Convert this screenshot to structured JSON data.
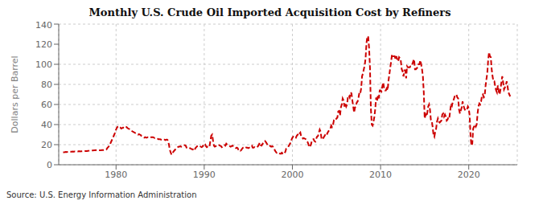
{
  "chart_data": {
    "type": "line",
    "title": "Monthly U.S. Crude Oil Imported Acquisition Cost by Refiners",
    "ylabel": "Dollars per Barrel",
    "annotations": [
      "Source: U.S. Energy Information Administration"
    ],
    "color": "#CC0000",
    "line_style": "dashed",
    "grid": true,
    "xlim": [
      1973.5,
      2025.5
    ],
    "xticks": [
      1980,
      1990,
      2000,
      2010,
      2020
    ],
    "ylim": [
      0,
      140
    ],
    "yticks": [
      0,
      20,
      40,
      60,
      80,
      100,
      120,
      140
    ],
    "x": [
      1974.0,
      1974.1,
      1974.2,
      1974.3,
      1974.4,
      1974.5,
      1974.6,
      1974.7,
      1974.8,
      1974.9,
      1975.0,
      1975.1,
      1975.2,
      1975.3,
      1975.4,
      1975.5,
      1975.6,
      1975.7,
      1975.8,
      1975.9,
      1976.0,
      1976.1,
      1976.2,
      1976.3,
      1976.4,
      1976.5,
      1976.6,
      1976.7,
      1976.8,
      1976.9,
      1977.0,
      1977.1,
      1977.2,
      1977.3,
      1977.4,
      1977.5,
      1977.6,
      1977.7,
      1977.8,
      1977.9,
      1978.0,
      1978.1,
      1978.2,
      1978.3,
      1978.4,
      1978.5,
      1978.6,
      1978.7,
      1978.8,
      1978.9,
      1979.0,
      1979.1,
      1979.2,
      1979.3,
      1979.4,
      1979.5,
      1979.6,
      1979.7,
      1979.8,
      1979.9,
      1980.0,
      1980.1,
      1980.2,
      1980.3,
      1980.4,
      1980.5,
      1980.6,
      1980.7,
      1980.8,
      1980.9,
      1981.0,
      1981.1,
      1981.2,
      1981.3,
      1981.4,
      1981.5,
      1981.6,
      1981.7,
      1981.8,
      1981.9,
      1982.0,
      1982.1,
      1982.2,
      1982.3,
      1982.4,
      1982.5,
      1982.6,
      1982.7,
      1982.8,
      1982.9,
      1983.0,
      1983.1,
      1983.2,
      1983.3,
      1983.4,
      1983.5,
      1983.6,
      1983.7,
      1983.8,
      1983.9,
      1984.0,
      1984.1,
      1984.2,
      1984.3,
      1984.4,
      1984.5,
      1984.6,
      1984.7,
      1984.8,
      1984.9,
      1985.0,
      1985.1,
      1985.2,
      1985.3,
      1985.4,
      1985.5,
      1985.6,
      1985.7,
      1985.8,
      1985.9,
      1986.0,
      1986.1,
      1986.2,
      1986.3,
      1986.4,
      1986.5,
      1986.6,
      1986.7,
      1986.8,
      1986.9,
      1987.0,
      1987.1,
      1987.2,
      1987.3,
      1987.4,
      1987.5,
      1987.6,
      1987.7,
      1987.8,
      1987.9,
      1988.0,
      1988.1,
      1988.2,
      1988.3,
      1988.4,
      1988.5,
      1988.6,
      1988.7,
      1988.8,
      1988.9,
      1989.0,
      1989.1,
      1989.2,
      1989.3,
      1989.4,
      1989.5,
      1989.6,
      1989.7,
      1989.8,
      1989.9,
      1990.0,
      1990.1,
      1990.2,
      1990.3,
      1990.4,
      1990.5,
      1990.6,
      1990.7,
      1990.8,
      1990.9,
      1991.0,
      1991.1,
      1991.2,
      1991.3,
      1991.4,
      1991.5,
      1991.6,
      1991.7,
      1991.8,
      1991.9,
      1992.0,
      1992.1,
      1992.2,
      1992.3,
      1992.4,
      1992.5,
      1992.6,
      1992.7,
      1992.8,
      1992.9,
      1993.0,
      1993.1,
      1993.2,
      1993.3,
      1993.4,
      1993.5,
      1993.6,
      1993.7,
      1993.8,
      1993.9,
      1994.0,
      1994.1,
      1994.2,
      1994.3,
      1994.4,
      1994.5,
      1994.6,
      1994.7,
      1994.8,
      1994.9,
      1995.0,
      1995.1,
      1995.2,
      1995.3,
      1995.4,
      1995.5,
      1995.6,
      1995.7,
      1995.8,
      1995.9,
      1996.0,
      1996.1,
      1996.2,
      1996.3,
      1996.4,
      1996.5,
      1996.6,
      1996.7,
      1996.8,
      1996.9,
      1997.0,
      1997.1,
      1997.2,
      1997.3,
      1997.4,
      1997.5,
      1997.6,
      1997.7,
      1997.8,
      1997.9,
      1998.0,
      1998.1,
      1998.2,
      1998.3,
      1998.4,
      1998.5,
      1998.6,
      1998.7,
      1998.8,
      1998.9,
      1999.0,
      1999.1,
      1999.2,
      1999.3,
      1999.4,
      1999.5,
      1999.6,
      1999.7,
      1999.8,
      1999.9,
      2000.0,
      2000.1,
      2000.2,
      2000.3,
      2000.4,
      2000.5,
      2000.6,
      2000.7,
      2000.8,
      2000.9,
      2001.0,
      2001.1,
      2001.2,
      2001.3,
      2001.4,
      2001.5,
      2001.6,
      2001.7,
      2001.8,
      2001.9,
      2002.0,
      2002.1,
      2002.2,
      2002.3,
      2002.4,
      2002.5,
      2002.6,
      2002.7,
      2002.8,
      2002.9,
      2003.0,
      2003.1,
      2003.2,
      2003.3,
      2003.4,
      2003.5,
      2003.6,
      2003.7,
      2003.8,
      2003.9,
      2004.0,
      2004.1,
      2004.2,
      2004.3,
      2004.4,
      2004.5,
      2004.6,
      2004.7,
      2004.8,
      2004.9,
      2005.0,
      2005.1,
      2005.2,
      2005.3,
      2005.4,
      2005.5,
      2005.6,
      2005.7,
      2005.8,
      2005.9,
      2006.0,
      2006.1,
      2006.2,
      2006.3,
      2006.4,
      2006.5,
      2006.6,
      2006.7,
      2006.8,
      2006.9,
      2007.0,
      2007.1,
      2007.2,
      2007.3,
      2007.4,
      2007.5,
      2007.6,
      2007.7,
      2007.8,
      2007.9,
      2008.0,
      2008.1,
      2008.2,
      2008.3,
      2008.4,
      2008.5,
      2008.6,
      2008.7,
      2008.8,
      2008.9,
      2009.0,
      2009.1,
      2009.2,
      2009.3,
      2009.4,
      2009.5,
      2009.6,
      2009.7,
      2009.8,
      2009.9,
      2010.0,
      2010.1,
      2010.2,
      2010.3,
      2010.4,
      2010.5,
      2010.6,
      2010.7,
      2010.8,
      2010.9,
      2011.0,
      2011.1,
      2011.2,
      2011.3,
      2011.4,
      2011.5,
      2011.6,
      2011.7,
      2011.8,
      2011.9,
      2012.0,
      2012.1,
      2012.2,
      2012.3,
      2012.4,
      2012.5,
      2012.6,
      2012.7,
      2012.8,
      2012.9,
      2013.0,
      2013.1,
      2013.2,
      2013.3,
      2013.4,
      2013.5,
      2013.6,
      2013.7,
      2013.8,
      2013.9,
      2014.0,
      2014.1,
      2014.2,
      2014.3,
      2014.4,
      2014.5,
      2014.6,
      2014.7,
      2014.8,
      2014.9,
      2015.0,
      2015.1,
      2015.2,
      2015.3,
      2015.4,
      2015.5,
      2015.6,
      2015.7,
      2015.8,
      2015.9,
      2016.0,
      2016.1,
      2016.2,
      2016.3,
      2016.4,
      2016.5,
      2016.6,
      2016.7,
      2016.8,
      2016.9,
      2017.0,
      2017.1,
      2017.2,
      2017.3,
      2017.4,
      2017.5,
      2017.6,
      2017.7,
      2017.8,
      2017.9,
      2018.0,
      2018.1,
      2018.2,
      2018.3,
      2018.4,
      2018.5,
      2018.6,
      2018.7,
      2018.8,
      2018.9,
      2019.0,
      2019.1,
      2019.2,
      2019.3,
      2019.4,
      2019.5,
      2019.6,
      2019.7,
      2019.8,
      2019.9,
      2020.0,
      2020.1,
      2020.2,
      2020.3,
      2020.4,
      2020.5,
      2020.6,
      2020.7,
      2020.8,
      2020.9,
      2021.0,
      2021.1,
      2021.2,
      2021.3,
      2021.4,
      2021.5,
      2021.6,
      2021.7,
      2021.8,
      2021.9,
      2022.0,
      2022.1,
      2022.2,
      2022.3,
      2022.4,
      2022.5,
      2022.6,
      2022.7,
      2022.8,
      2022.9,
      2023.0,
      2023.1,
      2023.2,
      2023.3,
      2023.4,
      2023.5,
      2023.6,
      2023.7,
      2023.8,
      2023.9,
      2024.0,
      2024.1,
      2024.2,
      2024.3,
      2024.4,
      2024.5,
      2024.6,
      2024.7
    ],
    "values": [
      12.5,
      12.5,
      12.6,
      12.8,
      12.7,
      12.8,
      12.9,
      13.0,
      13.1,
      13.0,
      13.0,
      13.1,
      13.0,
      13.2,
      13.1,
      13.3,
      13.2,
      13.2,
      13.5,
      13.3,
      13.4,
      13.4,
      13.5,
      13.4,
      13.5,
      13.6,
      13.7,
      13.7,
      13.8,
      13.9,
      14.0,
      14.1,
      14.2,
      14.3,
      14.3,
      14.4,
      14.4,
      14.5,
      14.4,
      14.5,
      14.6,
      14.5,
      14.5,
      14.5,
      14.6,
      14.6,
      14.7,
      14.7,
      14.7,
      15.0,
      16.5,
      17.5,
      18.5,
      20.0,
      22.0,
      24.0,
      26.0,
      28.0,
      30.0,
      32.0,
      35.0,
      37.0,
      38.0,
      38.5,
      37.5,
      37.0,
      36.0,
      36.5,
      37.0,
      36.5,
      37.5,
      37.8,
      37.5,
      36.5,
      36.0,
      35.5,
      34.5,
      34.0,
      33.5,
      33.0,
      32.5,
      32.0,
      31.5,
      31.0,
      30.5,
      30.0,
      30.5,
      30.0,
      29.5,
      28.5,
      28.0,
      27.5,
      27.0,
      27.5,
      27.0,
      27.0,
      27.5,
      27.5,
      27.0,
      27.0,
      27.5,
      27.5,
      27.5,
      27.0,
      26.5,
      26.5,
      26.5,
      26.0,
      25.5,
      25.5,
      25.5,
      25.0,
      25.0,
      25.5,
      25.0,
      25.0,
      24.5,
      25.0,
      25.0,
      24.0,
      20.0,
      15.0,
      12.0,
      10.0,
      11.0,
      13.0,
      14.0,
      15.0,
      16.0,
      17.0,
      17.5,
      18.0,
      18.0,
      18.5,
      18.0,
      18.5,
      19.0,
      19.5,
      19.5,
      19.0,
      17.0,
      16.5,
      16.0,
      16.0,
      16.5,
      16.0,
      15.5,
      15.5,
      14.0,
      14.5,
      16.5,
      17.5,
      18.5,
      18.5,
      18.0,
      18.5,
      18.0,
      17.5,
      18.0,
      19.5,
      21.0,
      20.5,
      18.5,
      17.5,
      18.0,
      17.5,
      18.0,
      24.0,
      29.0,
      30.0,
      24.0,
      19.0,
      18.0,
      18.5,
      19.0,
      18.5,
      19.0,
      19.5,
      19.0,
      18.5,
      17.5,
      18.0,
      18.5,
      19.5,
      19.0,
      21.0,
      20.0,
      19.5,
      19.0,
      18.5,
      18.0,
      18.5,
      19.0,
      18.5,
      18.0,
      17.0,
      16.5,
      17.0,
      16.5,
      14.0,
      14.5,
      14.0,
      14.5,
      16.0,
      17.0,
      17.5,
      18.0,
      17.5,
      17.0,
      17.0,
      16.5,
      17.0,
      17.5,
      18.5,
      19.0,
      17.0,
      17.0,
      17.5,
      17.0,
      17.5,
      17.5,
      18.5,
      20.0,
      22.0,
      19.5,
      19.0,
      20.5,
      21.5,
      22.0,
      23.5,
      22.5,
      21.0,
      19.5,
      19.0,
      19.5,
      18.5,
      18.0,
      18.5,
      18.0,
      17.0,
      14.5,
      13.0,
      12.0,
      12.5,
      12.0,
      11.5,
      11.0,
      11.0,
      12.0,
      11.0,
      10.5,
      11.5,
      13.0,
      16.0,
      16.5,
      17.5,
      19.0,
      20.5,
      22.0,
      25.0,
      27.0,
      28.0,
      27.5,
      28.0,
      27.0,
      29.0,
      30.0,
      29.0,
      31.0,
      32.0,
      28.0,
      27.5,
      26.0,
      26.5,
      26.0,
      25.5,
      24.5,
      23.0,
      21.0,
      17.5,
      18.5,
      20.0,
      23.5,
      25.0,
      25.5,
      23.5,
      23.0,
      26.0,
      28.0,
      28.5,
      32.0,
      35.0,
      33.0,
      26.0,
      25.0,
      26.5,
      28.0,
      29.5,
      28.5,
      30.0,
      32.0,
      33.5,
      34.5,
      36.0,
      39.0,
      37.5,
      39.5,
      44.0,
      43.5,
      45.0,
      46.0,
      47.0,
      53.0,
      53.5,
      49.0,
      57.0,
      60.0,
      66.0,
      64.0,
      58.0,
      61.0,
      58.0,
      60.0,
      68.0,
      69.0,
      67.0,
      72.0,
      71.0,
      64.0,
      58.0,
      52.0,
      57.0,
      58.0,
      62.0,
      63.0,
      67.0,
      72.0,
      71.0,
      76.0,
      88.0,
      91.0,
      95.0,
      99.0,
      106.0,
      121.0,
      128.0,
      127.0,
      116.0,
      96.0,
      56.0,
      40.0,
      39.0,
      43.0,
      48.0,
      56.0,
      67.0,
      63.0,
      69.0,
      66.0,
      74.0,
      74.0,
      73.0,
      78.0,
      82.0,
      76.0,
      74.0,
      74.0,
      76.0,
      74.0,
      84.0,
      90.0,
      97.0,
      103.0,
      110.0,
      108.0,
      108.0,
      108.0,
      105.0,
      108.0,
      104.0,
      103.0,
      107.0,
      106.0,
      103.0,
      95.0,
      93.0,
      88.0,
      94.0,
      94.0,
      86.0,
      98.0,
      97.0,
      97.0,
      97.0,
      98.0,
      98.0,
      100.0,
      103.0,
      105.0,
      95.0,
      95.0,
      96.0,
      97.0,
      100.0,
      100.0,
      104.0,
      100.0,
      95.0,
      88.0,
      72.0,
      46.0,
      50.0,
      48.0,
      52.0,
      58.0,
      60.0,
      55.0,
      45.0,
      44.0,
      38.0,
      30.0,
      28.0,
      33.0,
      36.0,
      43.0,
      46.0,
      43.0,
      42.0,
      43.0,
      44.0,
      50.0,
      51.0,
      48.0,
      50.0,
      48.0,
      44.0,
      45.0,
      48.0,
      47.0,
      54.0,
      61.0,
      59.0,
      63.0,
      65.0,
      68.0,
      69.0,
      70.0,
      67.0,
      66.0,
      55.0,
      51.0,
      54.0,
      57.0,
      63.0,
      59.0,
      56.0,
      54.0,
      55.0,
      55.0,
      58.0,
      56.0,
      49.0,
      29.0,
      19.0,
      21.0,
      36.0,
      38.0,
      40.0,
      38.0,
      40.0,
      51.0,
      58.0,
      61.0,
      60.0,
      63.0,
      69.0,
      70.0,
      67.0,
      68.0,
      78.0,
      85.0,
      91.0,
      104.0,
      112.0,
      108.0,
      107.0,
      95.0,
      88.0,
      83.0,
      83.0,
      78.0,
      74.0,
      72.0,
      79.0,
      73.0,
      70.0,
      75.0,
      82.0,
      88.0,
      82.0,
      75.0,
      77.0,
      79.0,
      83.0,
      78.0,
      72.0,
      70.0,
      68.0
    ]
  }
}
